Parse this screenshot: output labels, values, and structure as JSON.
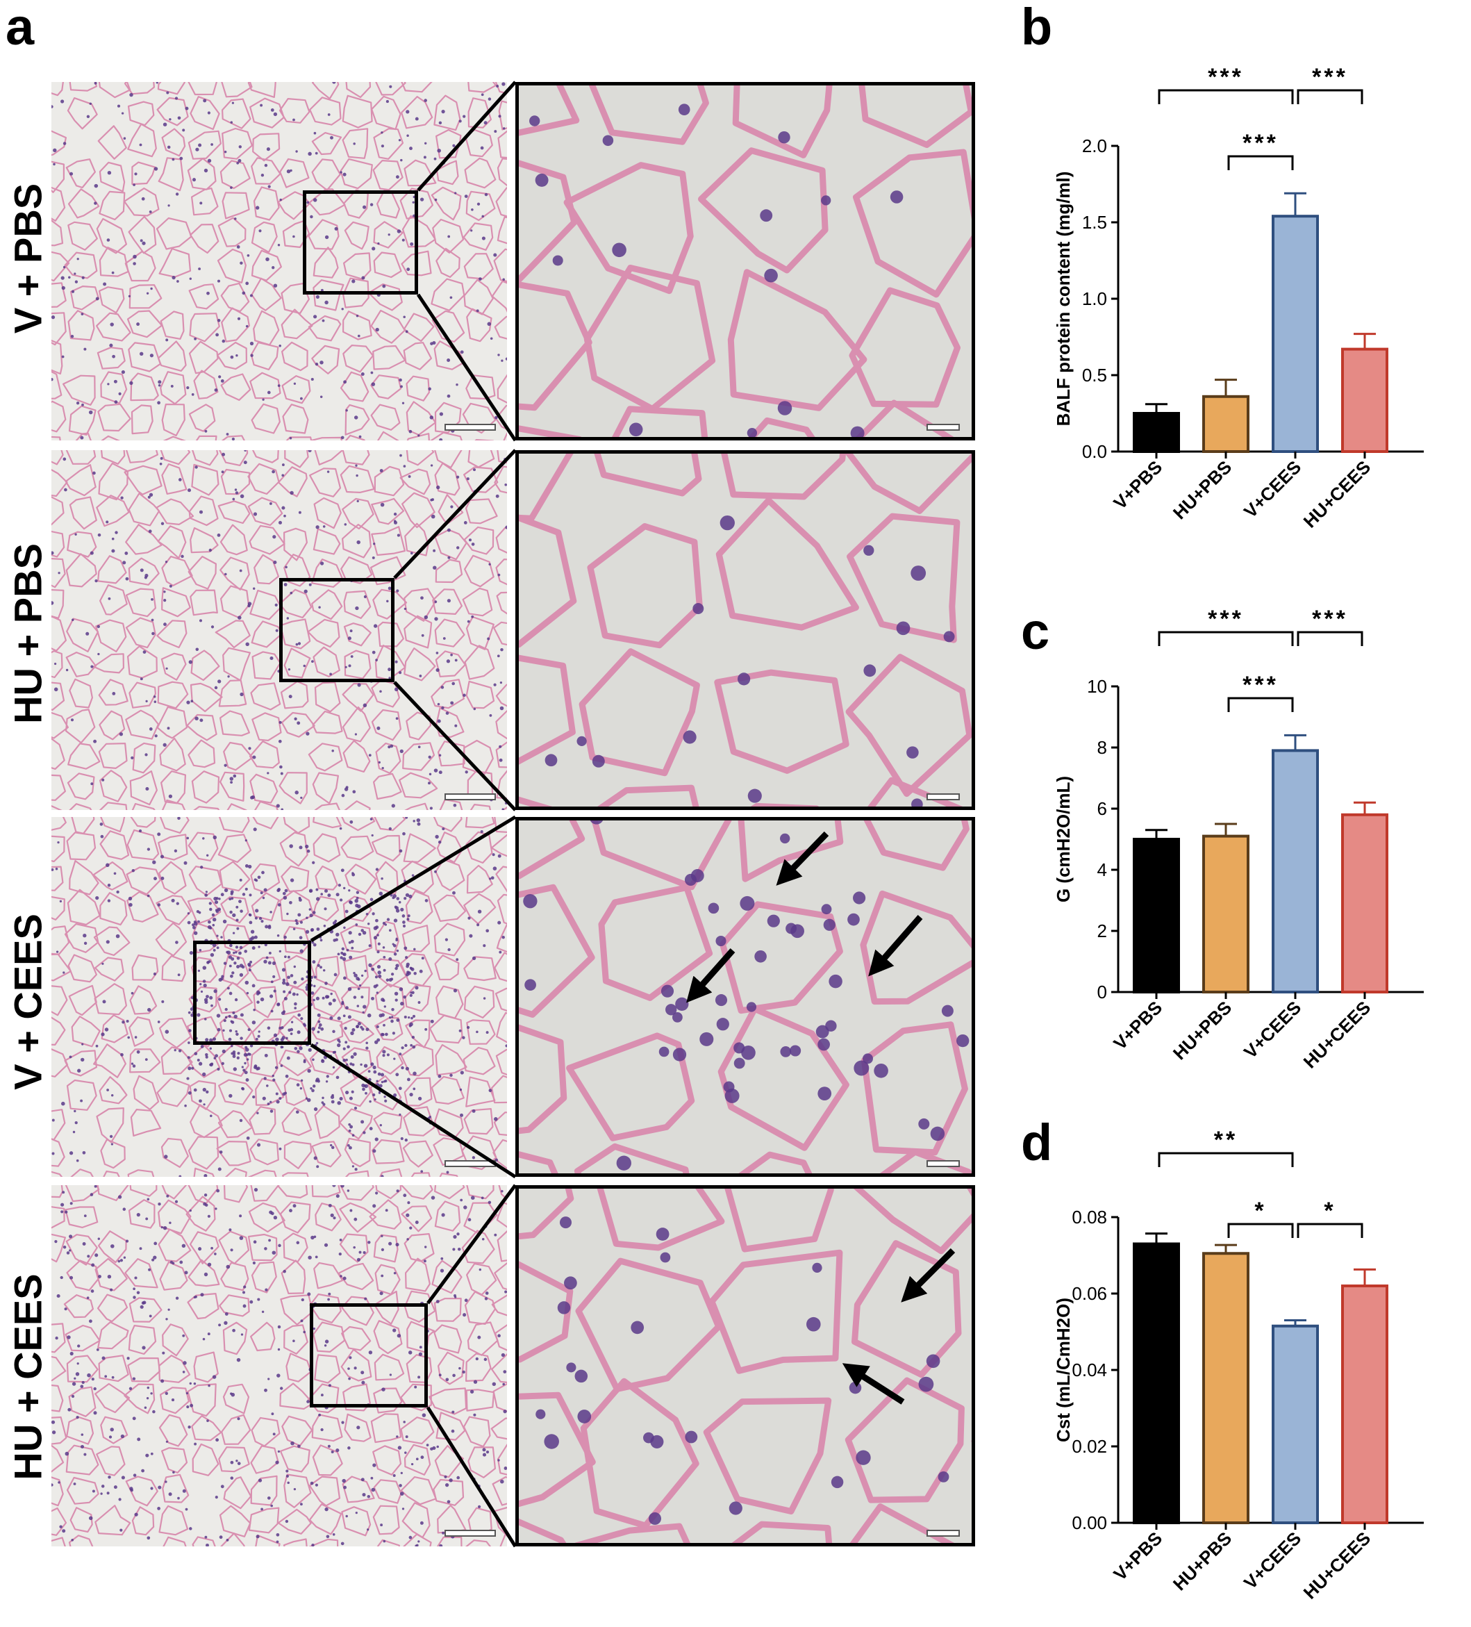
{
  "panel_letters": {
    "a": "a",
    "b": "b",
    "c": "c",
    "d": "d"
  },
  "micrograph_rows": [
    {
      "label": "V + PBS",
      "tissue": "normal"
    },
    {
      "label": "HU + PBS",
      "tissue": "normal"
    },
    {
      "label": "V + CEES",
      "tissue": "inflamed"
    },
    {
      "label": "HU + CEES",
      "tissue": "mild"
    }
  ],
  "colors": {
    "tissue_pink": "#d98fb0",
    "nuclei": "#5a3a8a",
    "background": "#ecebe8",
    "zoom_background": "#dcdcd8",
    "bar_black": "#000000",
    "bar_orange": "#e8a85c",
    "bar_blue": "#9ab4d6",
    "bar_red": "#e58a85"
  },
  "chart_data": [
    {
      "type": "bar",
      "panel": "b",
      "categories": [
        "V+PBS",
        "HU+PBS",
        "V+CEES",
        "HU+CEES"
      ],
      "values": [
        0.25,
        0.36,
        1.54,
        0.67
      ],
      "errors": [
        0.06,
        0.11,
        0.15,
        0.1
      ],
      "ylabel": "BALF protein content (mg/ml)",
      "ylim": [
        0,
        2.0
      ],
      "yticks": [
        "0.0",
        "0.5",
        "1.0",
        "1.5",
        "2.0"
      ],
      "significance": [
        {
          "from": 0,
          "to": 2,
          "label": "***"
        },
        {
          "from": 2,
          "to": 3,
          "label": "***"
        },
        {
          "from": 1,
          "to": 2,
          "label": "***"
        }
      ]
    },
    {
      "type": "bar",
      "panel": "c",
      "categories": [
        "V+PBS",
        "HU+PBS",
        "V+CEES",
        "HU+CEES"
      ],
      "values": [
        5.0,
        5.1,
        7.9,
        5.8
      ],
      "errors": [
        0.3,
        0.4,
        0.5,
        0.4
      ],
      "ylabel": "G (cmH2O/mL)",
      "ylim": [
        0,
        10
      ],
      "yticks": [
        "0",
        "2",
        "4",
        "6",
        "8",
        "10"
      ],
      "significance": [
        {
          "from": 0,
          "to": 2,
          "label": "***"
        },
        {
          "from": 2,
          "to": 3,
          "label": "***"
        },
        {
          "from": 1,
          "to": 2,
          "label": "***"
        }
      ]
    },
    {
      "type": "bar",
      "panel": "d",
      "categories": [
        "V+PBS",
        "HU+PBS",
        "V+CEES",
        "HU+CEES"
      ],
      "values": [
        0.073,
        0.0705,
        0.0515,
        0.062
      ],
      "errors": [
        0.0027,
        0.0022,
        0.0015,
        0.0043
      ],
      "ylabel": "Cst (mL/CmH2O)",
      "ylim": [
        0,
        0.08
      ],
      "yticks": [
        "0.00",
        "0.02",
        "0.04",
        "0.06",
        "0.08"
      ],
      "significance": [
        {
          "from": 0,
          "to": 2,
          "label": "**"
        },
        {
          "from": 1,
          "to": 2,
          "label": "*"
        },
        {
          "from": 2,
          "to": 3,
          "label": "*"
        }
      ]
    }
  ]
}
